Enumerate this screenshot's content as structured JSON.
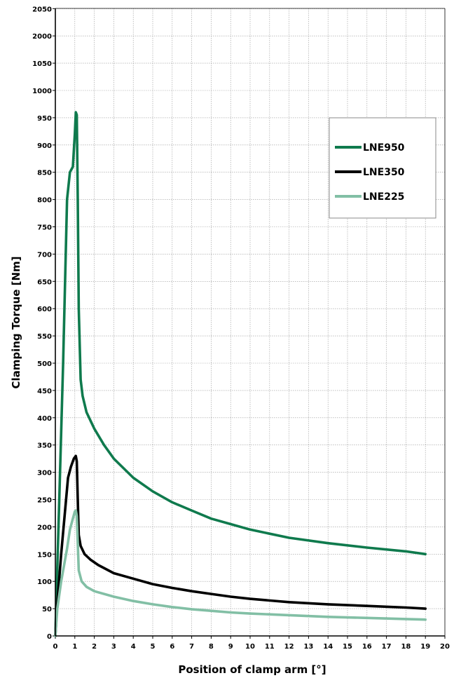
{
  "chart_data": {
    "type": "line",
    "xlabel": "Position of clamp arm [°]",
    "ylabel": "Clamping Torque [Nm]",
    "xlim": [
      0,
      20
    ],
    "ylim": [
      0,
      2050
    ],
    "x_ticks": [
      "0",
      "1",
      "2",
      "3",
      "4",
      "5",
      "6",
      "7",
      "8",
      "9",
      "10",
      "11",
      "12",
      "13",
      "14",
      "15",
      "16",
      "17",
      "18",
      "19",
      "20"
    ],
    "y_ticks": [
      "0",
      "50",
      "100",
      "150",
      "200",
      "250",
      "300",
      "350",
      "400",
      "450",
      "500",
      "550",
      "600",
      "650",
      "700",
      "750",
      "800",
      "850",
      "900",
      "950",
      "1000",
      "1050",
      "2000",
      "2050"
    ],
    "grid": true,
    "legend_position": "right",
    "series": [
      {
        "name": "LNE950",
        "color": "#0f7a4d",
        "x": [
          0.0,
          0.2,
          0.4,
          0.6,
          0.75,
          0.9,
          1.0,
          1.05,
          1.1,
          1.15,
          1.2,
          1.3,
          1.4,
          1.6,
          2.0,
          2.5,
          3,
          4,
          5,
          6,
          7,
          8,
          9,
          10,
          12,
          14,
          16,
          18,
          19
        ],
        "y": [
          0,
          250,
          500,
          800,
          850,
          860,
          920,
          960,
          955,
          800,
          600,
          470,
          440,
          410,
          380,
          350,
          325,
          290,
          265,
          245,
          230,
          215,
          205,
          195,
          180,
          170,
          162,
          155,
          150
        ]
      },
      {
        "name": "LNE350",
        "color": "#000000",
        "x": [
          0.0,
          0.1,
          0.3,
          0.5,
          0.65,
          0.8,
          0.95,
          1.05,
          1.1,
          1.15,
          1.2,
          1.3,
          1.5,
          1.8,
          2.2,
          3,
          4,
          5,
          6,
          7,
          8,
          9,
          10,
          12,
          14,
          16,
          18,
          19
        ],
        "y": [
          0,
          60,
          150,
          230,
          290,
          310,
          325,
          330,
          320,
          250,
          185,
          165,
          150,
          140,
          130,
          115,
          105,
          95,
          88,
          82,
          77,
          72,
          68,
          62,
          58,
          55,
          52,
          50
        ]
      },
      {
        "name": "LNE225",
        "color": "#82bfa5",
        "x": [
          0.0,
          0.1,
          0.3,
          0.45,
          0.6,
          0.75,
          0.9,
          1.0,
          1.05,
          1.1,
          1.15,
          1.2,
          1.35,
          1.6,
          2.0,
          3,
          4,
          5,
          6,
          7,
          8,
          9,
          10,
          12,
          14,
          16,
          18,
          19
        ],
        "y": [
          0,
          50,
          100,
          130,
          160,
          195,
          215,
          228,
          230,
          220,
          170,
          120,
          100,
          90,
          82,
          72,
          64,
          58,
          53,
          49,
          46,
          43,
          41,
          38,
          35,
          33,
          31,
          30
        ]
      }
    ]
  }
}
